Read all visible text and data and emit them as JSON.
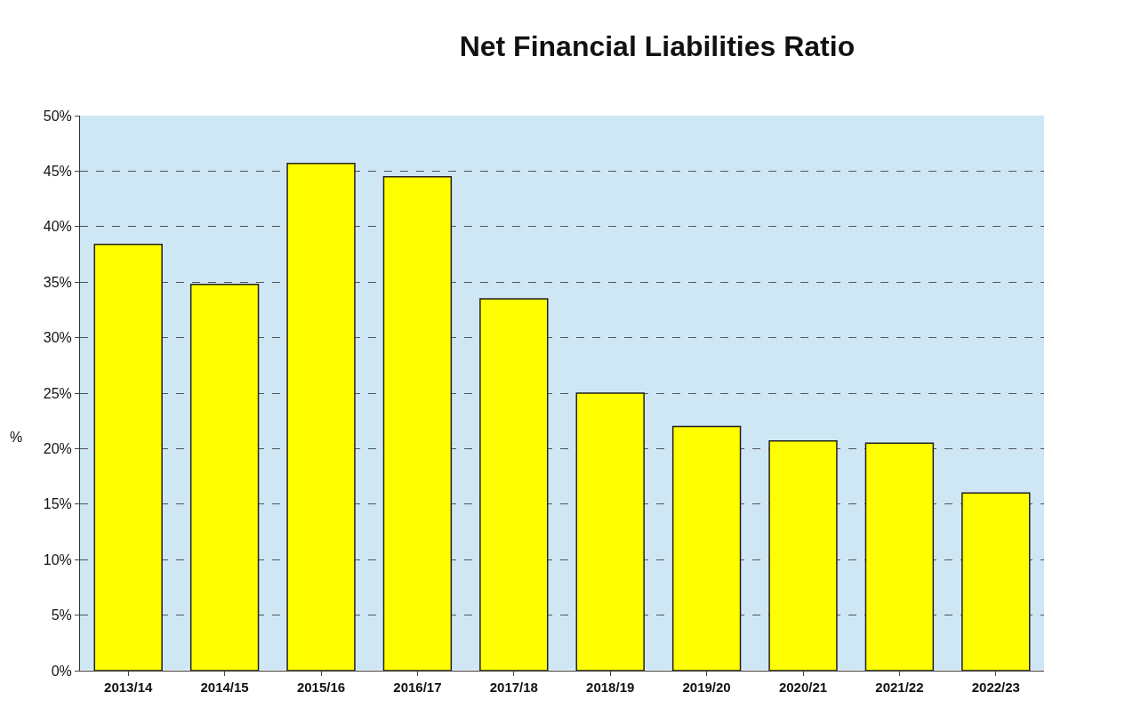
{
  "chart_data": {
    "type": "bar",
    "title": "Net Financial Liabilities Ratio",
    "ylabel": "%",
    "categories": [
      "2013/14",
      "2014/15",
      "2015/16",
      "2016/17",
      "2017/18",
      "2018/19",
      "2019/20",
      "2020/21",
      "2021/22",
      "2022/23"
    ],
    "values": [
      38.4,
      34.8,
      45.7,
      44.5,
      33.5,
      25.0,
      22.0,
      20.7,
      20.5,
      16.0
    ],
    "color": "#ffff00",
    "ylim": [
      0,
      50
    ],
    "yticks": [
      {
        "value": 0,
        "label": "0%"
      },
      {
        "value": 5,
        "label": "5%"
      },
      {
        "value": 10,
        "label": "10%"
      },
      {
        "value": 15,
        "label": "15%"
      },
      {
        "value": 20,
        "label": "20%"
      },
      {
        "value": 25,
        "label": "25%"
      },
      {
        "value": 30,
        "label": "30%"
      },
      {
        "value": 35,
        "label": "35%"
      },
      {
        "value": 40,
        "label": "40%"
      },
      {
        "value": 45,
        "label": "45%"
      },
      {
        "value": 50,
        "label": "50%"
      }
    ],
    "grid": "y"
  }
}
